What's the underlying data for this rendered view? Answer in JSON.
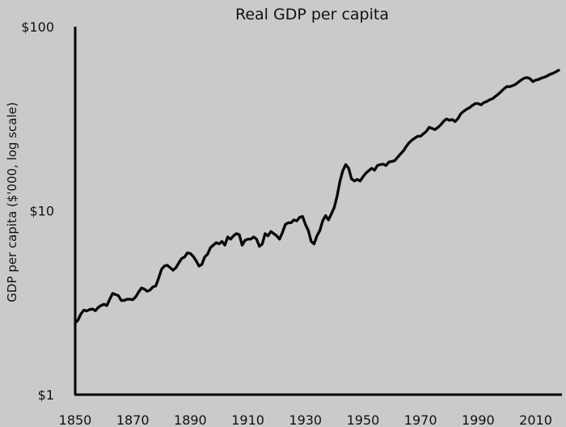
{
  "chart_data": {
    "type": "line",
    "title": "Real GDP per capita",
    "xlabel": "",
    "ylabel": "GDP per capita ($'000, log scale)",
    "y_scale": "log",
    "xlim": [
      1850,
      2018
    ],
    "ylim": [
      1,
      100
    ],
    "x_ticks": [
      "1850",
      "1870",
      "1890",
      "1910",
      "1930",
      "1950",
      "1970",
      "1990",
      "2010"
    ],
    "y_ticks": [
      "$1",
      "$10",
      "$100"
    ],
    "grid": false,
    "line_color": "#0a0a0a",
    "series": [
      {
        "x": [
          1850,
          1851,
          1852,
          1853,
          1854,
          1855,
          1856,
          1857,
          1858,
          1859,
          1860,
          1861,
          1862,
          1863,
          1864,
          1865,
          1866,
          1867,
          1868,
          1869,
          1870,
          1871,
          1872,
          1873,
          1874,
          1875,
          1876,
          1877,
          1878,
          1879,
          1880,
          1881,
          1882,
          1883,
          1884,
          1885,
          1886,
          1887,
          1888,
          1889,
          1890,
          1891,
          1892,
          1893,
          1894,
          1895,
          1896,
          1897,
          1898,
          1899,
          1900,
          1901,
          1902,
          1903,
          1904,
          1905,
          1906,
          1907,
          1908,
          1909,
          1910,
          1911,
          1912,
          1913,
          1914,
          1915,
          1916,
          1917,
          1918,
          1919,
          1920,
          1921,
          1922,
          1923,
          1924,
          1925,
          1926,
          1927,
          1928,
          1929,
          1930,
          1931,
          1932,
          1933,
          1934,
          1935,
          1936,
          1937,
          1938,
          1939,
          1940,
          1941,
          1942,
          1943,
          1944,
          1945,
          1946,
          1947,
          1948,
          1949,
          1950,
          1951,
          1952,
          1953,
          1954,
          1955,
          1956,
          1957,
          1958,
          1959,
          1960,
          1961,
          1962,
          1963,
          1964,
          1965,
          1966,
          1967,
          1968,
          1969,
          1970,
          1971,
          1972,
          1973,
          1974,
          1975,
          1976,
          1977,
          1978,
          1979,
          1980,
          1981,
          1982,
          1983,
          1984,
          1985,
          1986,
          1987,
          1988,
          1989,
          1990,
          1991,
          1992,
          1993,
          1994,
          1995,
          1996,
          1997,
          1998,
          1999,
          2000,
          2001,
          2002,
          2003,
          2004,
          2005,
          2006,
          2007,
          2008,
          2009,
          2010,
          2011,
          2012,
          2013,
          2014,
          2015,
          2016,
          2017,
          2018
        ],
        "y": [
          2.45,
          2.55,
          2.75,
          2.88,
          2.85,
          2.9,
          2.92,
          2.86,
          2.98,
          3.05,
          3.1,
          3.05,
          3.3,
          3.55,
          3.5,
          3.45,
          3.25,
          3.25,
          3.3,
          3.3,
          3.28,
          3.4,
          3.6,
          3.8,
          3.75,
          3.65,
          3.7,
          3.85,
          3.9,
          4.3,
          4.8,
          5.0,
          5.05,
          4.9,
          4.75,
          4.9,
          5.2,
          5.5,
          5.6,
          5.9,
          5.85,
          5.65,
          5.35,
          5.0,
          5.1,
          5.6,
          5.8,
          6.3,
          6.5,
          6.7,
          6.6,
          6.8,
          6.5,
          7.2,
          7.0,
          7.3,
          7.5,
          7.4,
          6.5,
          6.9,
          7.0,
          7.0,
          7.2,
          7.0,
          6.4,
          6.6,
          7.5,
          7.3,
          7.7,
          7.5,
          7.3,
          7.0,
          7.6,
          8.4,
          8.6,
          8.6,
          8.9,
          8.8,
          9.2,
          9.3,
          8.4,
          7.8,
          6.8,
          6.6,
          7.3,
          7.8,
          8.8,
          9.4,
          8.9,
          9.6,
          10.4,
          12.0,
          14.5,
          16.5,
          17.8,
          17.0,
          14.9,
          14.5,
          14.8,
          14.5,
          15.3,
          16.0,
          16.5,
          17.0,
          16.6,
          17.6,
          17.8,
          17.9,
          17.6,
          18.4,
          18.5,
          18.7,
          19.5,
          20.3,
          21.1,
          22.3,
          23.4,
          24.2,
          24.8,
          25.4,
          25.4,
          26.2,
          27.0,
          28.4,
          28.0,
          27.6,
          28.3,
          29.3,
          30.6,
          31.5,
          31.0,
          31.3,
          30.5,
          31.7,
          33.7,
          34.7,
          35.6,
          36.3,
          37.3,
          38.2,
          38.2,
          37.6,
          38.7,
          39.2,
          40.1,
          40.6,
          41.8,
          43.0,
          44.4,
          46.0,
          47.3,
          47.2,
          47.8,
          48.6,
          50.0,
          51.4,
          52.5,
          52.9,
          52.2,
          50.3,
          51.2,
          51.7,
          52.6,
          53.1,
          54.0,
          55.1,
          55.8,
          56.8,
          58.0
        ]
      }
    ]
  }
}
